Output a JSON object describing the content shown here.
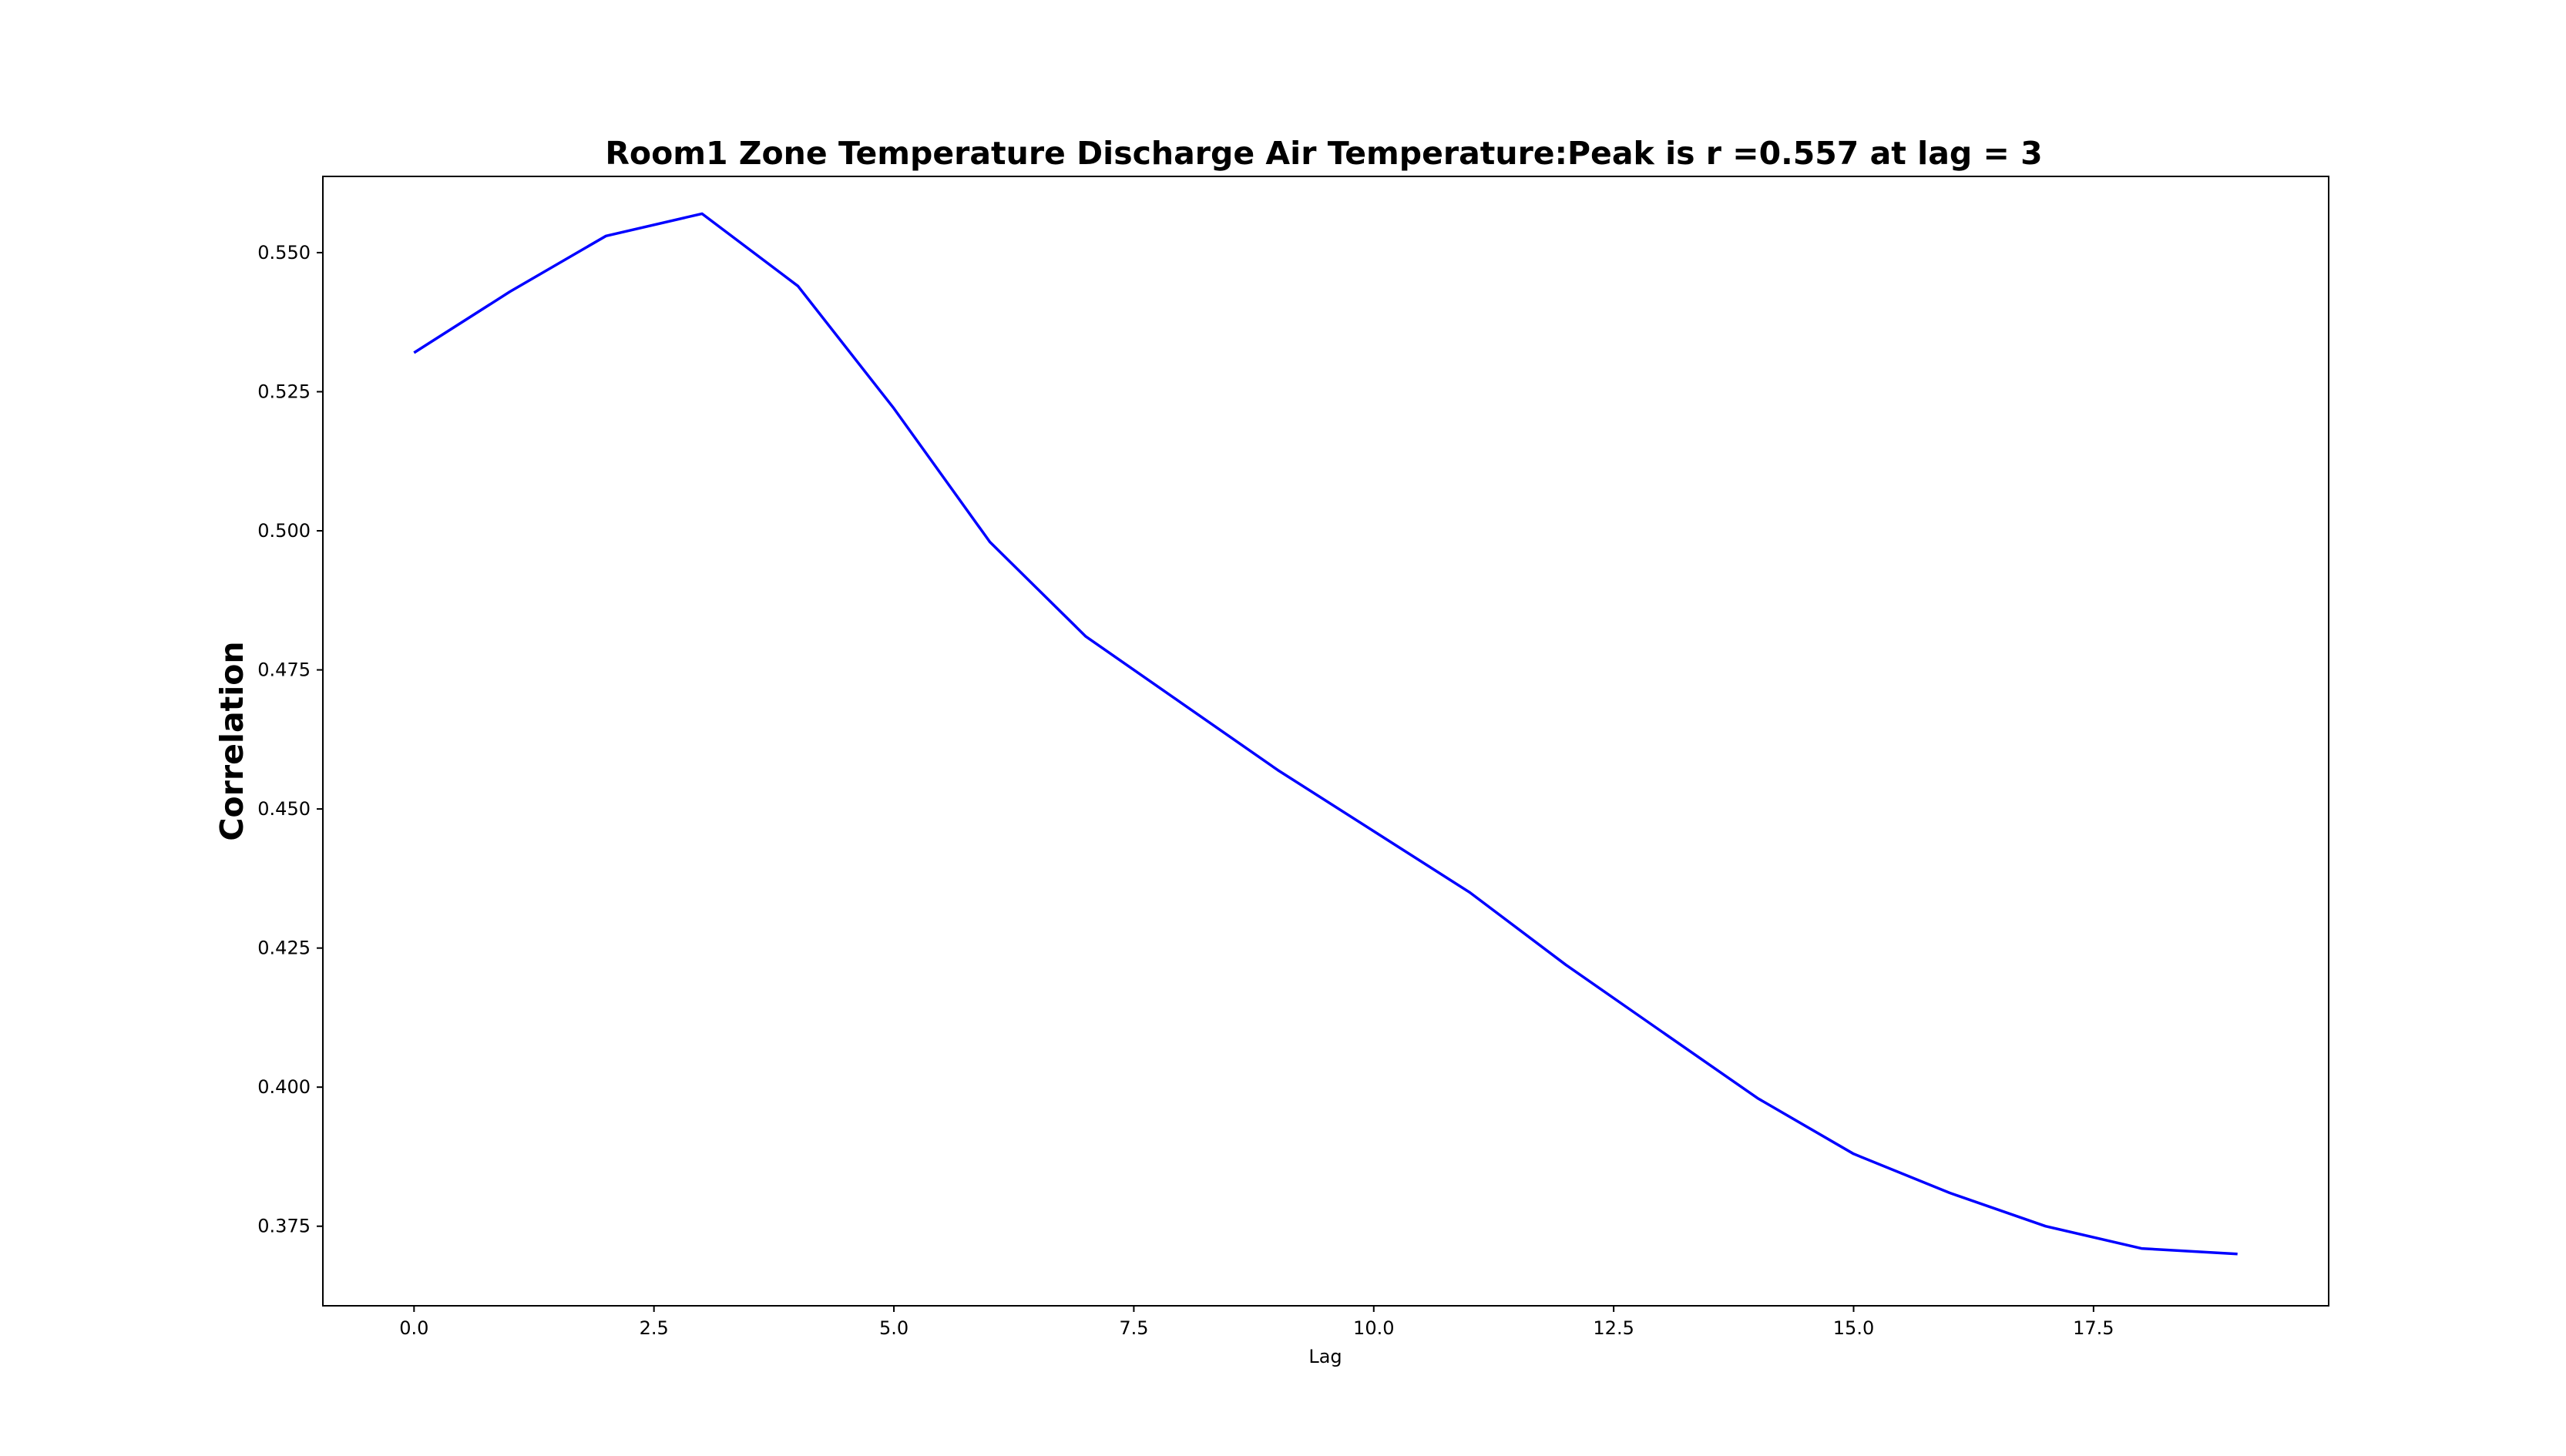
{
  "chart_data": {
    "type": "line",
    "title": "Room1 Zone Temperature Discharge Air Temperature:Peak is r =0.557 at lag = 3",
    "xlabel": "Lag",
    "ylabel": "Correlation",
    "xlim": [
      -0.95,
      19.95
    ],
    "ylim": [
      0.3607,
      0.5637
    ],
    "xticks": [
      0.0,
      2.5,
      5.0,
      7.5,
      10.0,
      12.5,
      15.0,
      17.5
    ],
    "xtick_labels": [
      "0.0",
      "2.5",
      "5.0",
      "7.5",
      "10.0",
      "12.5",
      "15.0",
      "17.5"
    ],
    "yticks": [
      0.375,
      0.4,
      0.425,
      0.45,
      0.475,
      0.5,
      0.525,
      0.55
    ],
    "ytick_labels": [
      "0.375",
      "0.400",
      "0.425",
      "0.450",
      "0.475",
      "0.500",
      "0.525",
      "0.550"
    ],
    "grid": false,
    "series": [
      {
        "color": "#0000ff",
        "x": [
          0,
          1,
          2,
          3,
          4,
          5,
          6,
          7,
          8,
          9,
          10,
          11,
          12,
          13,
          14,
          15,
          16,
          17,
          18,
          19
        ],
        "y": [
          0.532,
          0.543,
          0.553,
          0.557,
          0.544,
          0.522,
          0.498,
          0.481,
          0.469,
          0.457,
          0.446,
          0.435,
          0.422,
          0.41,
          0.398,
          0.388,
          0.381,
          0.375,
          0.371,
          0.37
        ]
      }
    ]
  }
}
